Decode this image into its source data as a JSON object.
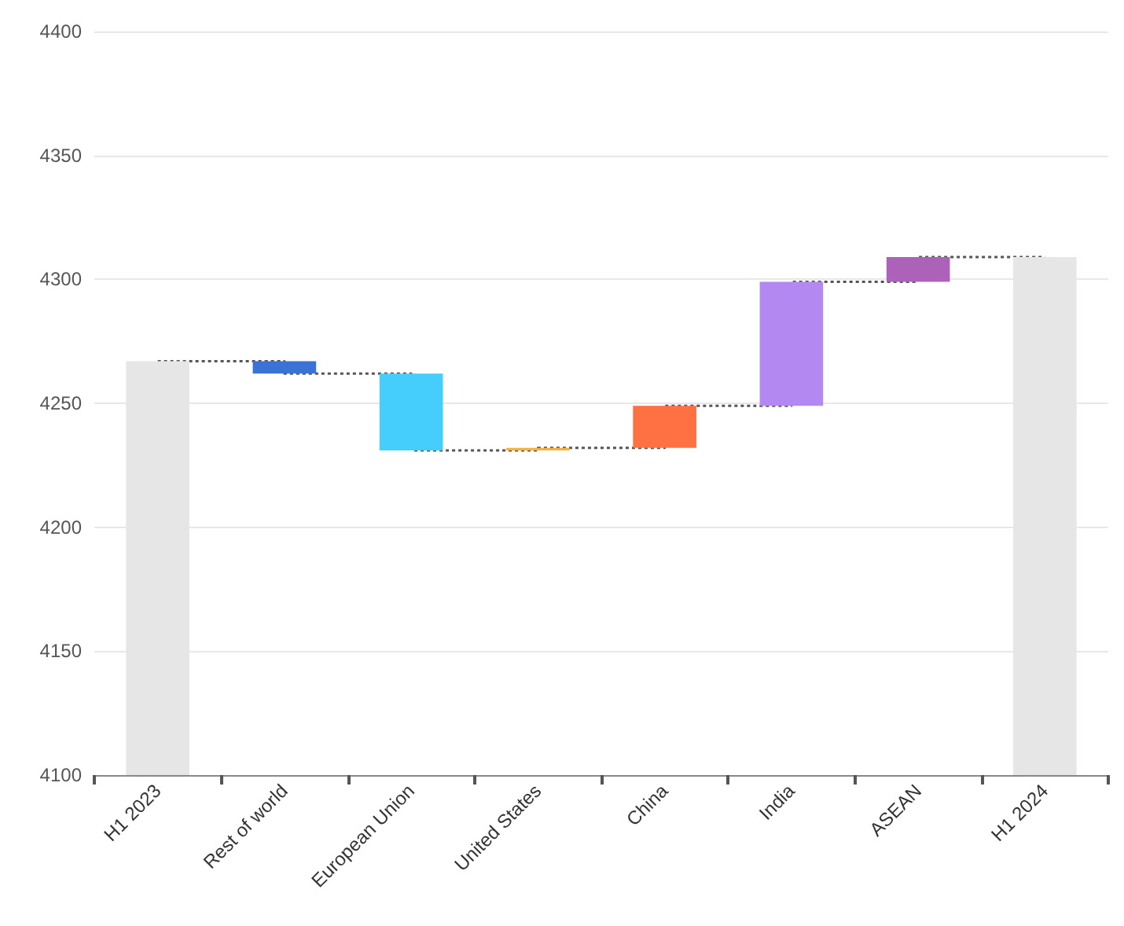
{
  "chart_data": {
    "type": "bar",
    "categories": [
      "H1 2023",
      "Rest of world",
      "European Union",
      "United States",
      "China",
      "India",
      "ASEAN",
      "H1 2024"
    ],
    "values": [
      4267,
      -5,
      -31,
      1,
      17,
      50,
      10,
      4309
    ],
    "base": [
      0,
      4267,
      4262,
      4231,
      4232,
      4249,
      4299,
      0
    ],
    "colors": [
      "#e6e6e6",
      "#3a72d6",
      "#45cdfb",
      "#f7b23b",
      "#ff7043",
      "#b388f0",
      "#ab62b8",
      "#e6e6e6"
    ],
    "series": [
      {
        "type": "step",
        "color": "#555555",
        "line_style": "dotted",
        "marker": "none",
        "values": [
          4267,
          4262,
          4231,
          4232,
          4249,
          4299,
          4309,
          4309
        ]
      }
    ],
    "ylim": [
      4100,
      4400
    ],
    "yticks": [
      4100,
      4150,
      4200,
      4250,
      4300,
      4350,
      4400
    ],
    "grid": "y"
  }
}
